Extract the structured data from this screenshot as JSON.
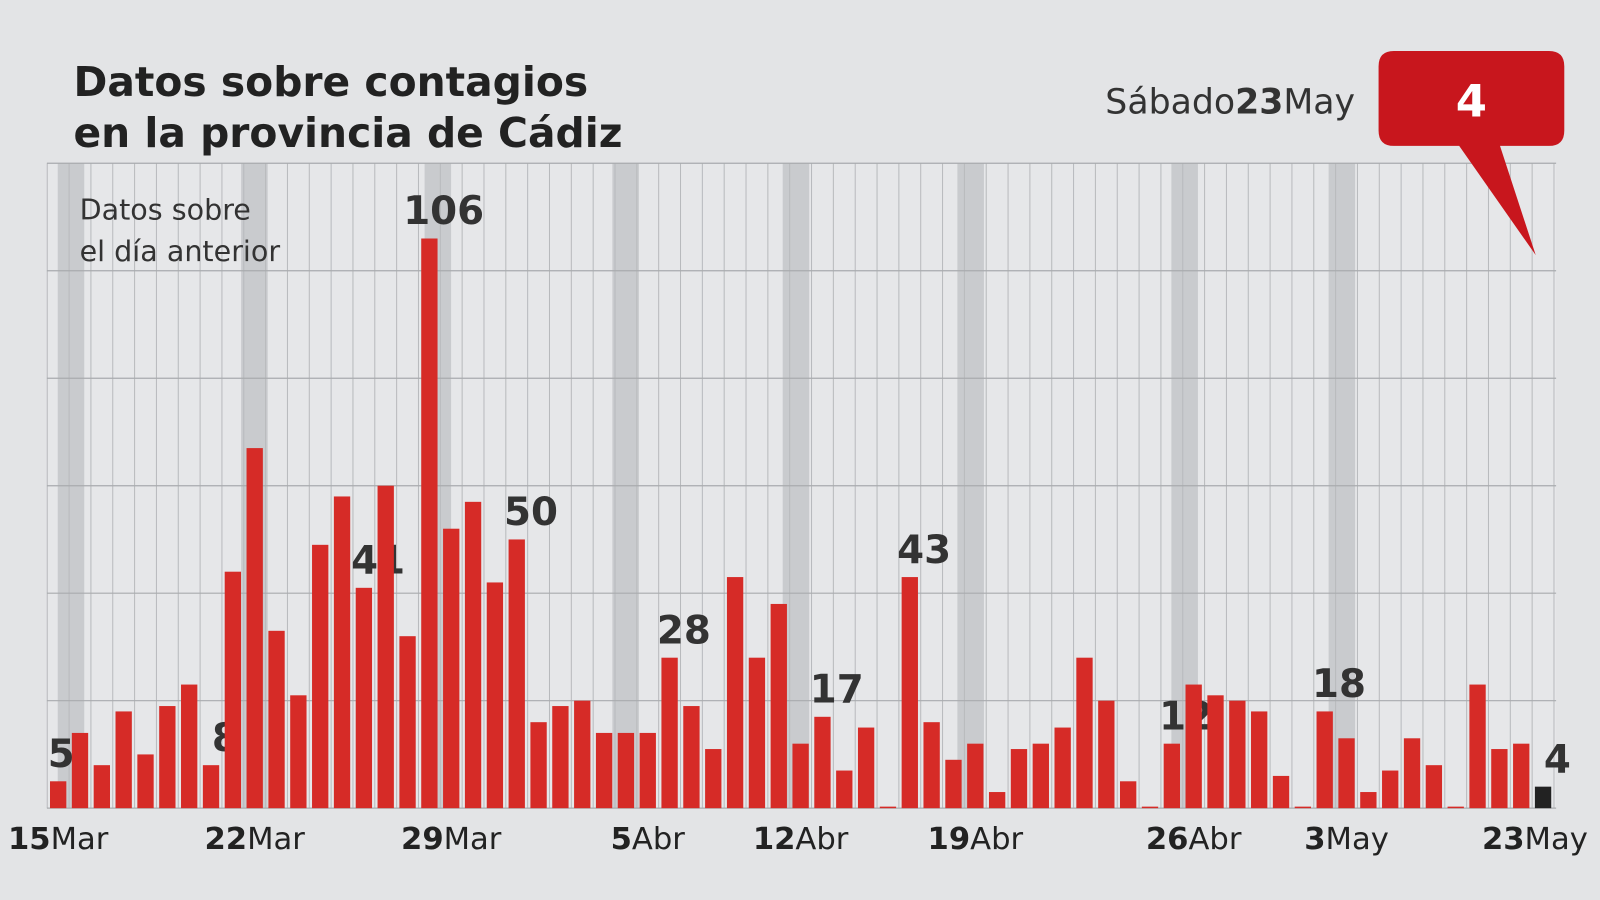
{
  "chart_data": {
    "type": "bar",
    "title": [
      "Datos sobre contagios",
      "en la provincia de Cádiz"
    ],
    "subtitle": [
      "Datos sobre",
      "el día anterior"
    ],
    "highlight_day": "Sábado",
    "highlight_date": "23May",
    "categories": [
      "15Mar",
      null,
      null,
      null,
      null,
      null,
      null,
      null,
      null,
      "22Mar",
      null,
      null,
      null,
      null,
      null,
      null,
      null,
      null,
      "29Mar",
      null,
      null,
      null,
      null,
      null,
      null,
      null,
      null,
      "5Abr",
      null,
      null,
      null,
      null,
      null,
      null,
      "12Abr",
      null,
      null,
      null,
      null,
      null,
      null,
      null,
      "19Abr",
      null,
      null,
      null,
      null,
      null,
      null,
      null,
      null,
      null,
      "26Abr",
      null,
      null,
      null,
      null,
      null,
      null,
      "3May",
      null,
      null,
      null,
      null,
      null,
      null,
      null,
      null,
      "23May"
    ],
    "values": [
      5,
      14,
      8,
      18,
      10,
      19,
      23,
      8,
      44,
      67,
      33,
      21,
      49,
      58,
      41,
      60,
      32,
      106,
      52,
      57,
      42,
      50,
      16,
      19,
      20,
      14,
      14,
      14,
      28,
      19,
      11,
      43,
      28,
      38,
      12,
      17,
      7,
      15,
      0,
      43,
      16,
      9,
      12,
      3,
      11,
      12,
      15,
      28,
      20,
      5,
      0,
      12,
      23,
      21,
      20,
      18,
      6,
      0,
      18,
      13,
      3,
      7,
      13,
      8,
      0,
      23,
      11,
      12,
      4
    ],
    "value_labels": [
      "5",
      null,
      null,
      null,
      null,
      null,
      null,
      "8",
      null,
      null,
      null,
      null,
      null,
      null,
      "41",
      null,
      null,
      "106",
      null,
      null,
      null,
      "50",
      null,
      null,
      null,
      null,
      null,
      null,
      "28",
      null,
      null,
      null,
      null,
      null,
      null,
      "17",
      null,
      null,
      null,
      "43",
      null,
      null,
      null,
      null,
      null,
      null,
      null,
      null,
      null,
      null,
      null,
      "12",
      null,
      null,
      null,
      null,
      null,
      null,
      "18",
      null,
      null,
      null,
      null,
      null,
      null,
      null,
      null,
      null,
      "4"
    ],
    "color": "#d62b27",
    "highlight_color": "#222222",
    "callout_color": "#c8161d",
    "ylim": [
      0,
      120
    ],
    "yticks": [
      0,
      20,
      40,
      60,
      80,
      100,
      120
    ],
    "grid": true
  }
}
